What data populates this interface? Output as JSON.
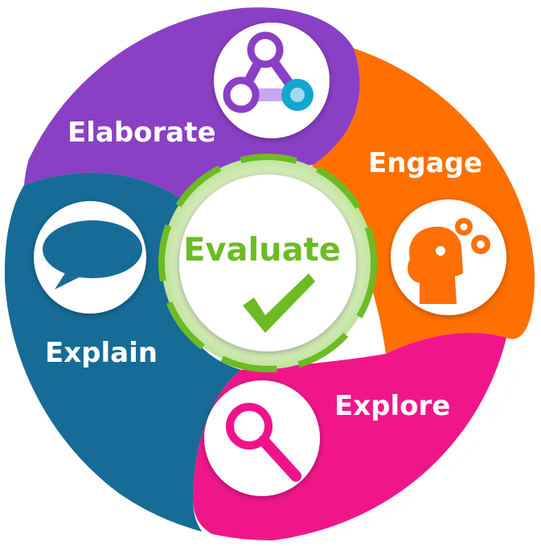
{
  "diagram": {
    "center": {
      "label": "Evaluate",
      "color": "#6dbb24",
      "icon": "checkmark-icon"
    },
    "segments": [
      {
        "id": "elaborate",
        "label": "Elaborate",
        "color": "#8a3fc4",
        "icon": "network-nodes-icon"
      },
      {
        "id": "engage",
        "label": "Engage",
        "color": "#ff6f06",
        "icon": "head-gears-icon"
      },
      {
        "id": "explore",
        "label": "Explore",
        "color": "#f0128a",
        "icon": "magnifier-icon"
      },
      {
        "id": "explain",
        "label": "Explain",
        "color": "#176c97",
        "icon": "speech-bubble-icon"
      }
    ]
  }
}
